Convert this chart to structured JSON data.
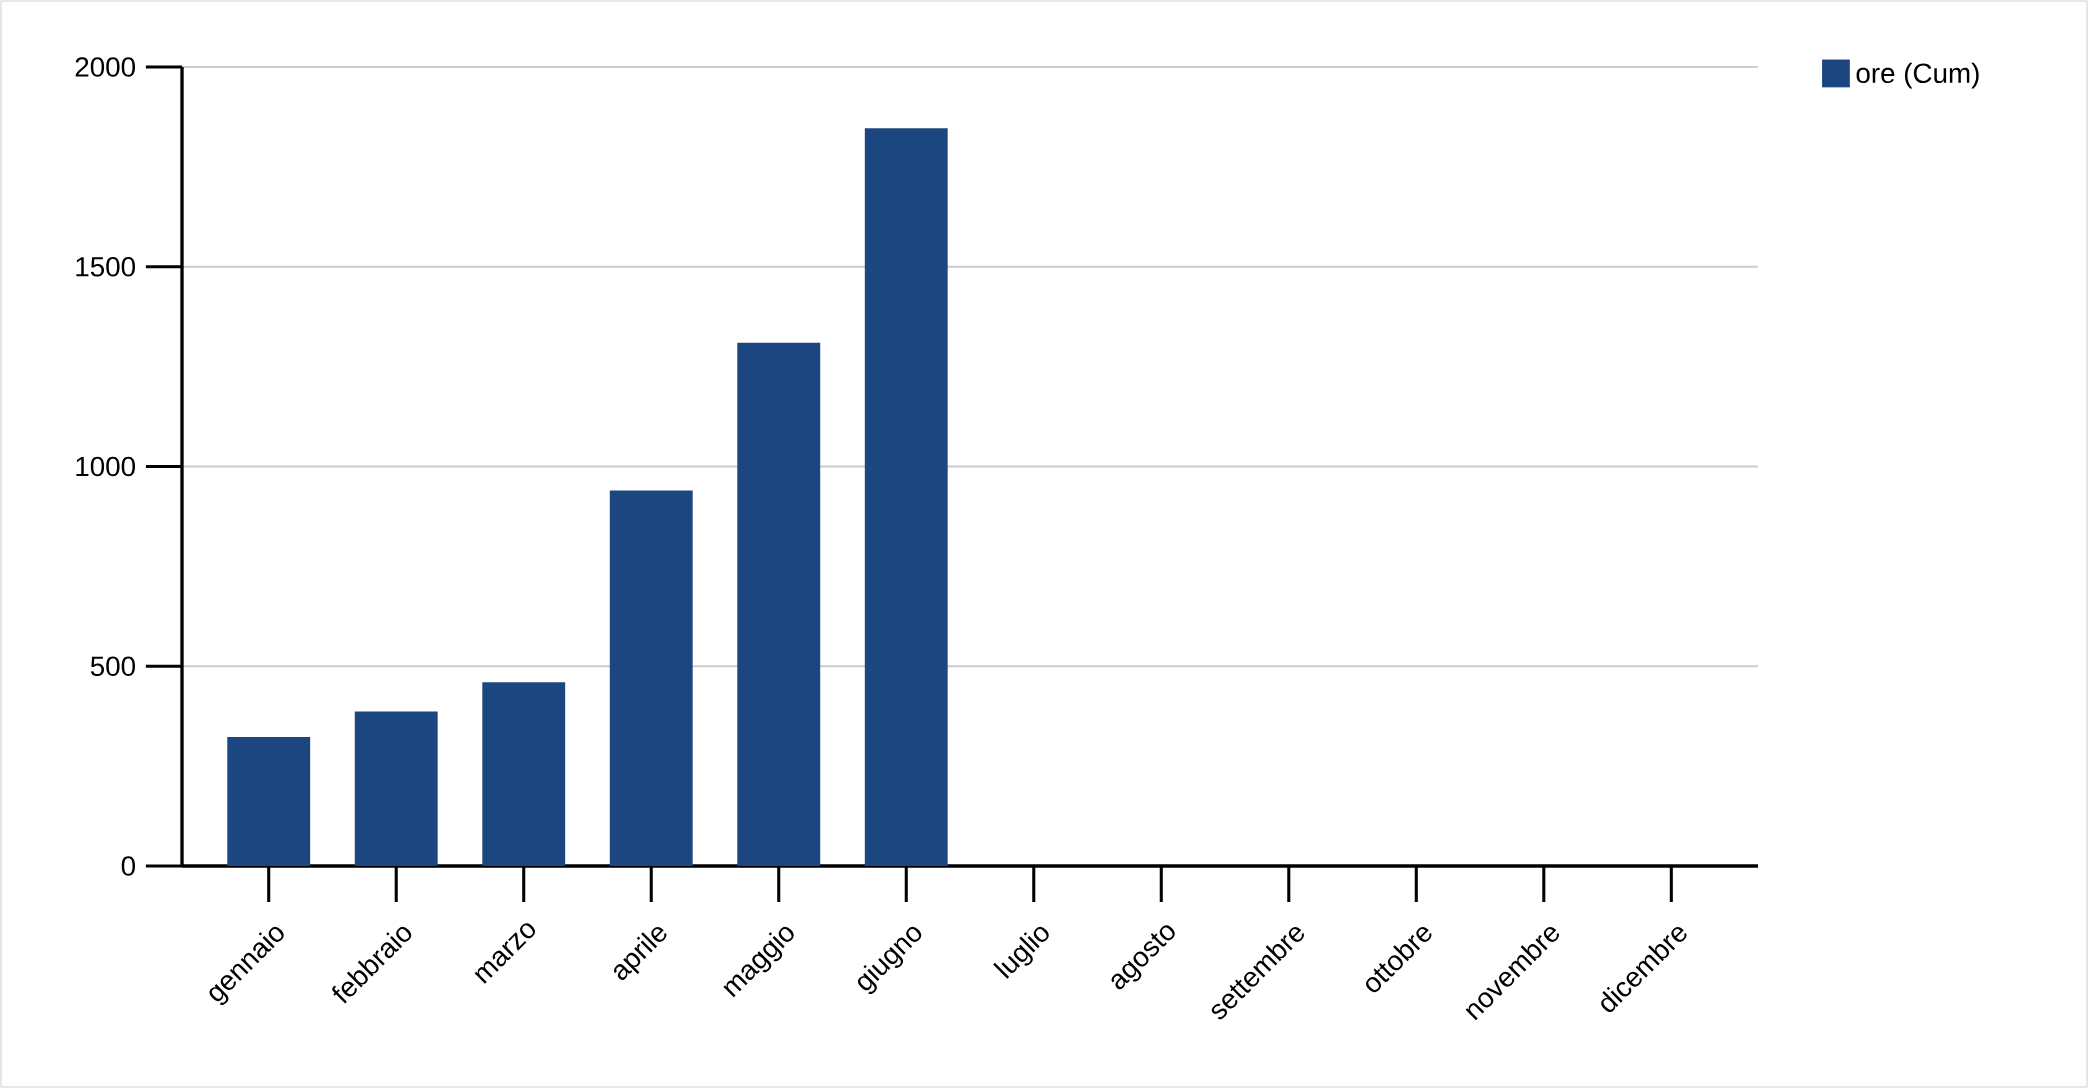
{
  "chart_data": {
    "type": "bar",
    "categories": [
      "gennaio",
      "febbraio",
      "marzo",
      "aprile",
      "maggio",
      "giugno",
      "luglio",
      "agosto",
      "settembre",
      "ottobre",
      "novembre",
      "dicembre"
    ],
    "series": [
      {
        "name": "ore (Cum)",
        "color": "#1c4680",
        "values": [
          323,
          387,
          460,
          940,
          1310,
          1847,
          null,
          null,
          null,
          null,
          null,
          null
        ]
      }
    ],
    "ylim": [
      0,
      2000
    ],
    "yticks": [
      0,
      500,
      1000,
      1500,
      2000
    ],
    "grid": "y",
    "legend": "top right"
  }
}
